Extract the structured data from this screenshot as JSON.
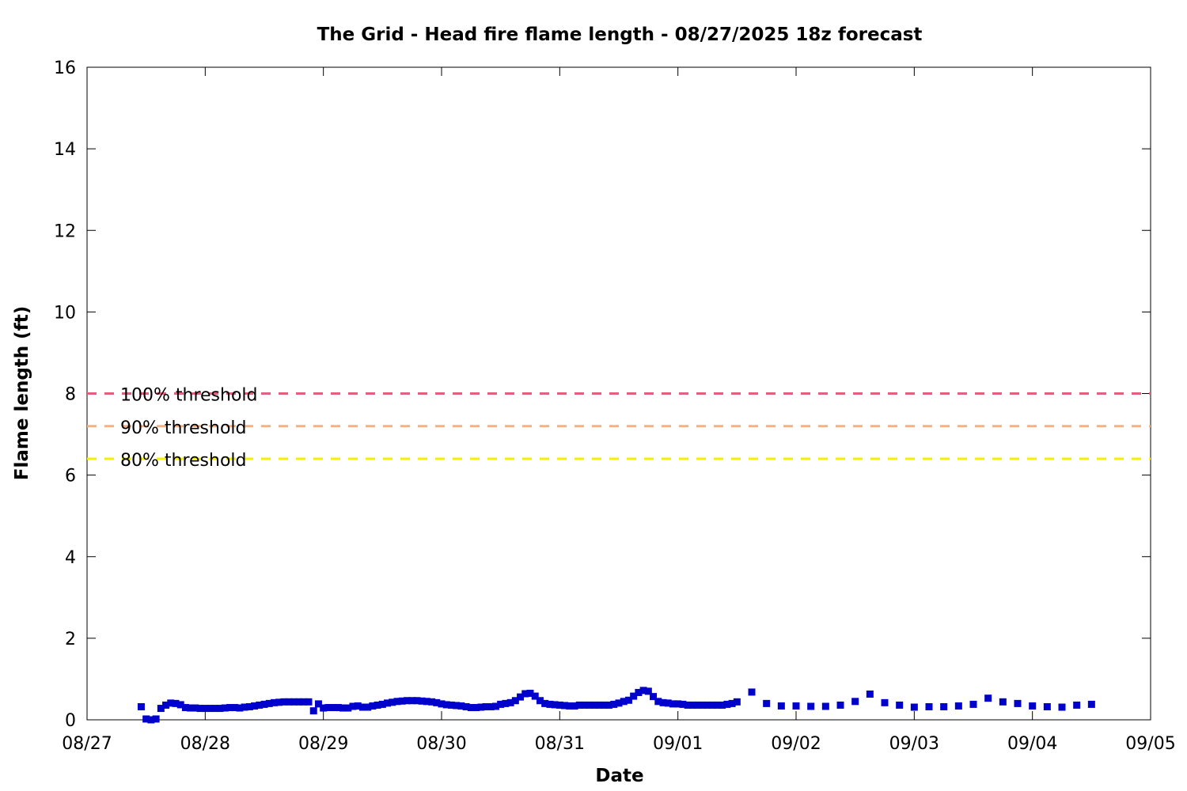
{
  "chart_data": {
    "type": "scatter",
    "title": "The Grid - Head fire flame length - 08/27/2025 18z forecast",
    "xlabel": "Date",
    "ylabel": "Flame length (ft)",
    "x_ticks": [
      "08/27",
      "08/28",
      "08/29",
      "08/30",
      "08/31",
      "09/01",
      "09/02",
      "09/03",
      "09/04",
      "09/05"
    ],
    "xlim": [
      "08/27 00:00",
      "09/05 00:00"
    ],
    "ylim": [
      0,
      16
    ],
    "y_ticks": [
      0,
      2,
      4,
      6,
      8,
      10,
      12,
      14,
      16
    ],
    "grid": false,
    "thresholds": [
      {
        "label": "100% threshold",
        "value": 8.0,
        "color": "#e0607e"
      },
      {
        "label": "90% threshold",
        "value": 7.2,
        "color": "#f4b183"
      },
      {
        "label": "80% threshold",
        "value": 6.4,
        "color": "#f5f000"
      }
    ],
    "series": [
      {
        "marker_color": "#0000cc",
        "points": [
          [
            "08/27 11:00",
            0.32
          ],
          [
            "08/27 12:00",
            0.02
          ],
          [
            "08/27 13:00",
            0.0
          ],
          [
            "08/27 14:00",
            0.02
          ],
          [
            "08/27 15:00",
            0.28
          ],
          [
            "08/27 16:00",
            0.36
          ],
          [
            "08/27 17:00",
            0.41
          ],
          [
            "08/27 18:00",
            0.4
          ],
          [
            "08/27 19:00",
            0.37
          ],
          [
            "08/27 20:00",
            0.3
          ],
          [
            "08/27 21:00",
            0.29
          ],
          [
            "08/27 22:00",
            0.29
          ],
          [
            "08/27 23:00",
            0.28
          ],
          [
            "08/28 00:00",
            0.28
          ],
          [
            "08/28 01:00",
            0.28
          ],
          [
            "08/28 02:00",
            0.28
          ],
          [
            "08/28 03:00",
            0.28
          ],
          [
            "08/28 04:00",
            0.29
          ],
          [
            "08/28 05:00",
            0.3
          ],
          [
            "08/28 06:00",
            0.3
          ],
          [
            "08/28 07:00",
            0.29
          ],
          [
            "08/28 08:00",
            0.31
          ],
          [
            "08/28 09:00",
            0.32
          ],
          [
            "08/28 10:00",
            0.34
          ],
          [
            "08/28 11:00",
            0.36
          ],
          [
            "08/28 12:00",
            0.38
          ],
          [
            "08/28 13:00",
            0.4
          ],
          [
            "08/28 14:00",
            0.42
          ],
          [
            "08/28 15:00",
            0.43
          ],
          [
            "08/28 16:00",
            0.44
          ],
          [
            "08/28 17:00",
            0.44
          ],
          [
            "08/28 18:00",
            0.44
          ],
          [
            "08/28 19:00",
            0.44
          ],
          [
            "08/28 20:00",
            0.44
          ],
          [
            "08/28 21:00",
            0.44
          ],
          [
            "08/28 22:00",
            0.22
          ],
          [
            "08/28 23:00",
            0.39
          ],
          [
            "08/29 00:00",
            0.29
          ],
          [
            "08/29 01:00",
            0.3
          ],
          [
            "08/29 02:00",
            0.3
          ],
          [
            "08/29 03:00",
            0.3
          ],
          [
            "08/29 04:00",
            0.29
          ],
          [
            "08/29 05:00",
            0.29
          ],
          [
            "08/29 06:00",
            0.33
          ],
          [
            "08/29 07:00",
            0.34
          ],
          [
            "08/29 08:00",
            0.31
          ],
          [
            "08/29 09:00",
            0.31
          ],
          [
            "08/29 10:00",
            0.34
          ],
          [
            "08/29 11:00",
            0.36
          ],
          [
            "08/29 12:00",
            0.38
          ],
          [
            "08/29 13:00",
            0.41
          ],
          [
            "08/29 14:00",
            0.43
          ],
          [
            "08/29 15:00",
            0.45
          ],
          [
            "08/29 16:00",
            0.46
          ],
          [
            "08/29 17:00",
            0.47
          ],
          [
            "08/29 18:00",
            0.47
          ],
          [
            "08/29 19:00",
            0.47
          ],
          [
            "08/29 20:00",
            0.46
          ],
          [
            "08/29 21:00",
            0.45
          ],
          [
            "08/29 22:00",
            0.44
          ],
          [
            "08/29 23:00",
            0.42
          ],
          [
            "08/30 00:00",
            0.39
          ],
          [
            "08/30 01:00",
            0.37
          ],
          [
            "08/30 02:00",
            0.36
          ],
          [
            "08/30 03:00",
            0.35
          ],
          [
            "08/30 04:00",
            0.34
          ],
          [
            "08/30 05:00",
            0.32
          ],
          [
            "08/30 06:00",
            0.3
          ],
          [
            "08/30 07:00",
            0.3
          ],
          [
            "08/30 08:00",
            0.31
          ],
          [
            "08/30 09:00",
            0.32
          ],
          [
            "08/30 10:00",
            0.32
          ],
          [
            "08/30 11:00",
            0.33
          ],
          [
            "08/30 12:00",
            0.38
          ],
          [
            "08/30 13:00",
            0.4
          ],
          [
            "08/30 14:00",
            0.42
          ],
          [
            "08/30 15:00",
            0.47
          ],
          [
            "08/30 16:00",
            0.56
          ],
          [
            "08/30 17:00",
            0.64
          ],
          [
            "08/30 18:00",
            0.65
          ],
          [
            "08/30 19:00",
            0.58
          ],
          [
            "08/30 20:00",
            0.47
          ],
          [
            "08/30 21:00",
            0.4
          ],
          [
            "08/30 22:00",
            0.38
          ],
          [
            "08/30 23:00",
            0.37
          ],
          [
            "08/31 00:00",
            0.36
          ],
          [
            "08/31 01:00",
            0.35
          ],
          [
            "08/31 02:00",
            0.34
          ],
          [
            "08/31 03:00",
            0.34
          ],
          [
            "08/31 04:00",
            0.36
          ],
          [
            "08/31 05:00",
            0.36
          ],
          [
            "08/31 06:00",
            0.36
          ],
          [
            "08/31 07:00",
            0.36
          ],
          [
            "08/31 08:00",
            0.36
          ],
          [
            "08/31 09:00",
            0.36
          ],
          [
            "08/31 10:00",
            0.36
          ],
          [
            "08/31 11:00",
            0.38
          ],
          [
            "08/31 12:00",
            0.41
          ],
          [
            "08/31 13:00",
            0.45
          ],
          [
            "08/31 14:00",
            0.48
          ],
          [
            "08/31 15:00",
            0.58
          ],
          [
            "08/31 16:00",
            0.67
          ],
          [
            "08/31 17:00",
            0.72
          ],
          [
            "08/31 18:00",
            0.7
          ],
          [
            "08/31 19:00",
            0.57
          ],
          [
            "08/31 20:00",
            0.45
          ],
          [
            "08/31 21:00",
            0.42
          ],
          [
            "08/31 22:00",
            0.41
          ],
          [
            "08/31 23:00",
            0.39
          ],
          [
            "09/01 00:00",
            0.39
          ],
          [
            "09/01 01:00",
            0.38
          ],
          [
            "09/01 02:00",
            0.36
          ],
          [
            "09/01 03:00",
            0.36
          ],
          [
            "09/01 04:00",
            0.36
          ],
          [
            "09/01 05:00",
            0.36
          ],
          [
            "09/01 06:00",
            0.36
          ],
          [
            "09/01 07:00",
            0.36
          ],
          [
            "09/01 08:00",
            0.36
          ],
          [
            "09/01 09:00",
            0.36
          ],
          [
            "09/01 10:00",
            0.38
          ],
          [
            "09/01 11:00",
            0.4
          ],
          [
            "09/01 12:00",
            0.44
          ],
          [
            "09/01 15:00",
            0.68
          ],
          [
            "09/01 18:00",
            0.4
          ],
          [
            "09/01 21:00",
            0.34
          ],
          [
            "09/02 00:00",
            0.34
          ],
          [
            "09/02 03:00",
            0.33
          ],
          [
            "09/02 06:00",
            0.33
          ],
          [
            "09/02 09:00",
            0.36
          ],
          [
            "09/02 12:00",
            0.45
          ],
          [
            "09/02 15:00",
            0.63
          ],
          [
            "09/02 18:00",
            0.42
          ],
          [
            "09/02 21:00",
            0.36
          ],
          [
            "09/03 00:00",
            0.31
          ],
          [
            "09/03 03:00",
            0.32
          ],
          [
            "09/03 06:00",
            0.32
          ],
          [
            "09/03 09:00",
            0.34
          ],
          [
            "09/03 12:00",
            0.38
          ],
          [
            "09/03 15:00",
            0.53
          ],
          [
            "09/03 18:00",
            0.44
          ],
          [
            "09/03 21:00",
            0.4
          ],
          [
            "09/04 00:00",
            0.34
          ],
          [
            "09/04 03:00",
            0.32
          ],
          [
            "09/04 06:00",
            0.31
          ],
          [
            "09/04 09:00",
            0.36
          ],
          [
            "09/04 12:00",
            0.38
          ]
        ]
      }
    ]
  }
}
